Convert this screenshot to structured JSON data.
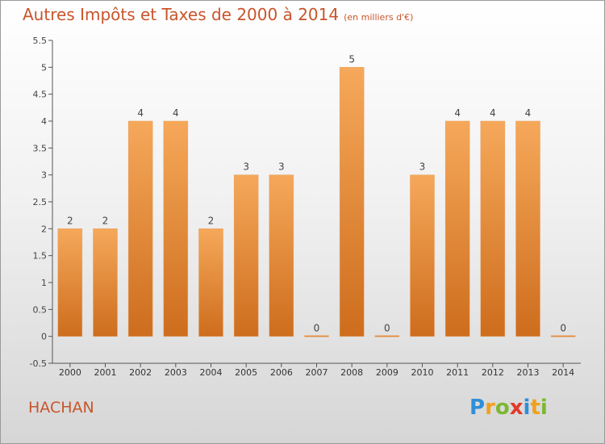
{
  "header": {
    "title": "Autres Impôts et Taxes de 2000 à 2014",
    "unit": "(en milliers d'€)"
  },
  "footer": {
    "commune": "HACHAN",
    "logo_letters": [
      {
        "ch": "P",
        "color": "#2f8ed8"
      },
      {
        "ch": "r",
        "color": "#f0a020"
      },
      {
        "ch": "o",
        "color": "#7cb82f"
      },
      {
        "ch": "x",
        "color": "#e03a2a"
      },
      {
        "ch": "i",
        "color": "#2f8ed8"
      },
      {
        "ch": "t",
        "color": "#f0a020"
      },
      {
        "ch": "i",
        "color": "#7cb82f"
      }
    ]
  },
  "colors": {
    "bar_light": "#f6a85a",
    "bar_dark": "#cd6d1d",
    "title": "#c8552b",
    "axis": "#555555",
    "grid": "#cccccc"
  },
  "chart_data": {
    "type": "bar",
    "title": "Autres Impôts et Taxes de 2000 à 2014",
    "subtitle": "(en milliers d'€)",
    "xlabel": "",
    "ylabel": "",
    "categories": [
      "2000",
      "2001",
      "2002",
      "2003",
      "2004",
      "2005",
      "2006",
      "2007",
      "2008",
      "2009",
      "2010",
      "2011",
      "2012",
      "2013",
      "2014"
    ],
    "values": [
      2,
      2,
      4,
      4,
      2,
      3,
      3,
      0,
      5,
      0,
      3,
      4,
      4,
      4,
      0
    ],
    "data_labels": [
      "2",
      "2",
      "4",
      "4",
      "2",
      "3",
      "3",
      "0",
      "5",
      "0",
      "3",
      "4",
      "4",
      "4",
      "0"
    ],
    "ylim": [
      -0.5,
      5.5
    ],
    "yticks": [
      -0.5,
      0,
      0.5,
      1,
      1.5,
      2,
      2.5,
      3,
      3.5,
      4,
      4.5,
      5,
      5.5
    ],
    "ytick_labels": [
      "-0.5",
      "0",
      "0.5",
      "1",
      "1.5",
      "2",
      "2.5",
      "3",
      "3.5",
      "4",
      "4.5",
      "5",
      "5.5"
    ],
    "grid": false,
    "legend": "none"
  }
}
